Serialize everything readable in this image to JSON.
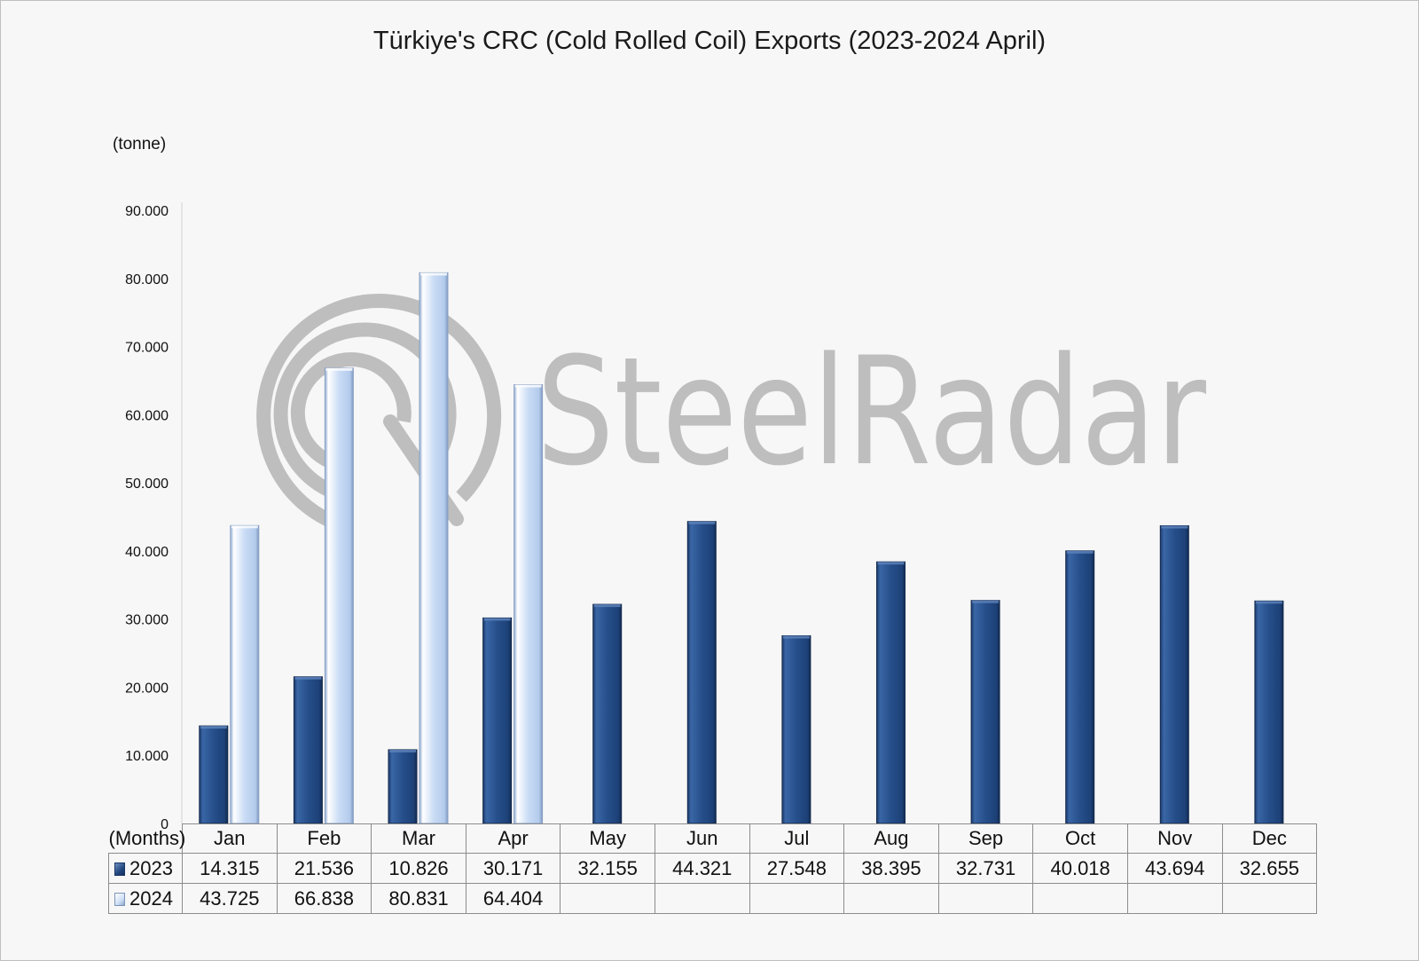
{
  "chart_data": {
    "type": "bar",
    "title": "Türkiye's CRC (Cold Rolled Coil) Exports (2023-2024 April)",
    "ylabel": "(tonne)",
    "xlabel": "(Months)",
    "ylim": [
      0,
      90000
    ],
    "yticks": [
      0,
      10000,
      20000,
      30000,
      40000,
      50000,
      60000,
      70000,
      80000,
      90000
    ],
    "ytick_labels": [
      "0",
      "10.000",
      "20.000",
      "30.000",
      "40.000",
      "50.000",
      "60.000",
      "70.000",
      "80.000",
      "90.000"
    ],
    "categories": [
      "Jan",
      "Feb",
      "Mar",
      "Apr",
      "May",
      "Jun",
      "Jul",
      "Aug",
      "Sep",
      "Oct",
      "Nov",
      "Dec"
    ],
    "series": [
      {
        "name": "2023",
        "color": "#264f8a",
        "values": [
          14315,
          21536,
          10826,
          30171,
          32155,
          44321,
          27548,
          38395,
          32731,
          40018,
          43694,
          32655
        ],
        "labels": [
          "14.315",
          "21.536",
          "10.826",
          "30.171",
          "32.155",
          "44.321",
          "27.548",
          "38.395",
          "32.731",
          "40.018",
          "43.694",
          "32.655"
        ]
      },
      {
        "name": "2024",
        "color": "#c6daf4",
        "values": [
          43725,
          66838,
          80831,
          64404,
          null,
          null,
          null,
          null,
          null,
          null,
          null,
          null
        ],
        "labels": [
          "43.725",
          "66.838",
          "80.831",
          "64.404",
          "",
          "",
          "",
          "",
          "",
          "",
          "",
          ""
        ]
      }
    ],
    "grid": false,
    "legend": "data-table"
  },
  "watermark": {
    "text": "SteelRadar",
    "icon": "radar-logo-icon",
    "color": "#b5b5b5"
  }
}
